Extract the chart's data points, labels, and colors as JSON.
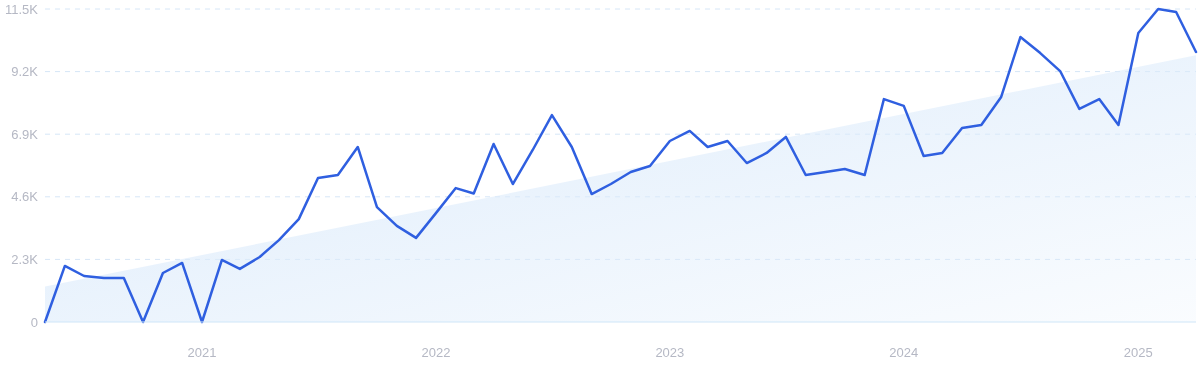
{
  "chart_data": {
    "type": "line",
    "x": [
      "2020-05",
      "2020-06",
      "2020-07",
      "2020-08",
      "2020-09",
      "2020-10",
      "2020-11",
      "2020-12",
      "2021-01",
      "2021-02",
      "2021-03",
      "2021-04",
      "2021-05",
      "2021-06",
      "2021-07",
      "2021-08",
      "2021-09",
      "2021-10",
      "2021-11",
      "2021-12",
      "2022-01",
      "2022-02",
      "2022-03",
      "2022-04",
      "2022-05",
      "2022-06",
      "2022-07",
      "2022-08",
      "2022-09",
      "2022-10",
      "2022-11",
      "2022-12",
      "2023-01",
      "2023-02",
      "2023-03",
      "2023-04",
      "2023-05",
      "2023-06",
      "2023-07",
      "2023-08",
      "2023-09",
      "2023-10",
      "2023-11",
      "2023-12",
      "2024-01",
      "2024-02",
      "2024-03",
      "2024-04",
      "2024-05",
      "2024-06",
      "2024-07",
      "2024-08",
      "2024-09",
      "2024-10",
      "2024-11",
      "2024-12",
      "2025-01",
      "2025-02",
      "2025-03",
      "2025-04"
    ],
    "series": [
      {
        "type": "area",
        "color": "#dcebfb",
        "x": [
          "2020-05",
          "2025-04"
        ],
        "values": [
          1300,
          9800
        ]
      },
      {
        "color": "#2f5fe0",
        "values": [
          0,
          2060,
          1690,
          1620,
          1620,
          0,
          1800,
          2170,
          0,
          2280,
          1950,
          2390,
          3010,
          3780,
          5290,
          5400,
          6430,
          4220,
          3530,
          3090,
          4000,
          4920,
          4720,
          6540,
          5070,
          6320,
          7600,
          6430,
          4700,
          5070,
          5510,
          5730,
          6650,
          7020,
          6430,
          6650,
          5840,
          6210,
          6800,
          5400,
          5510,
          5620,
          5400,
          8190,
          7940,
          6100,
          6210,
          7130,
          7240,
          8270,
          10470,
          9880,
          9220,
          7830,
          8190,
          7240,
          10620,
          11500,
          11390,
          9920
        ]
      }
    ],
    "xlim": [
      "2020-05",
      "2025-04"
    ],
    "xticks": [
      {
        "value": "2021-01",
        "label": "2021"
      },
      {
        "value": "2022-01",
        "label": "2022"
      },
      {
        "value": "2023-01",
        "label": "2023"
      },
      {
        "value": "2024-01",
        "label": "2024"
      },
      {
        "value": "2025-01",
        "label": "2025"
      }
    ],
    "ylim": [
      0,
      11500
    ],
    "yticks": [
      0,
      {
        "value": 2300,
        "label": "2.3K"
      },
      {
        "value": 4600,
        "label": "4.6K"
      },
      {
        "value": 6900,
        "label": "6.9K"
      },
      {
        "value": 9200,
        "label": "9.2K"
      },
      {
        "value": 11500,
        "label": "11.5K"
      }
    ],
    "grid": "y",
    "line_style": "solid",
    "marker": "none"
  }
}
